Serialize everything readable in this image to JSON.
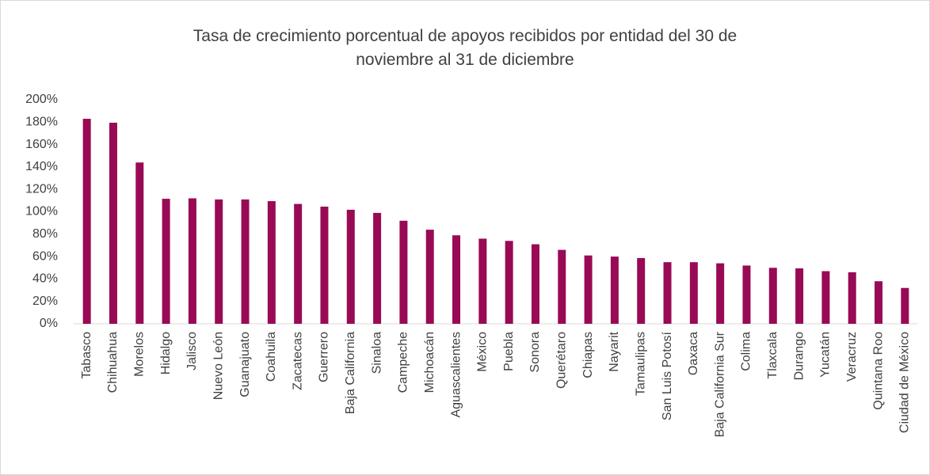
{
  "chart_data": {
    "type": "bar",
    "title": "Tasa de crecimiento porcentual de apoyos recibidos por entidad del 30 de noviembre al 31 de diciembre",
    "categories": [
      "Tabasco",
      "Chihuahua",
      "Morelos",
      "Hidalgo",
      "Jalisco",
      "Nuevo León",
      "Guanajuato",
      "Coahuila",
      "Zacatecas",
      "Guerrero",
      "Baja California",
      "Sinaloa",
      "Campeche",
      "Michoacán",
      "Aguascalientes",
      "México",
      "Puebla",
      "Sonora",
      "Querétaro",
      "Chiapas",
      "Nayarit",
      "Tamaulipas",
      "San Luis Potosí",
      "Oaxaca",
      "Baja California Sur",
      "Colima",
      "Tlaxcala",
      "Durango",
      "Yucatán",
      "Veracruz",
      "Quintana Roo",
      "Ciudad de México"
    ],
    "values": [
      183,
      179.5,
      144,
      111.6,
      112,
      111,
      111,
      109.5,
      107,
      104.6,
      101.8,
      99,
      92,
      84,
      79,
      76,
      74,
      71,
      66,
      61,
      60,
      58.7,
      55,
      55,
      54,
      52,
      50,
      49.5,
      47,
      46,
      38,
      32
    ],
    "color": "#990a55",
    "ylim": [
      0,
      200
    ],
    "yticks": [
      {
        "value": 0,
        "label": "0%"
      },
      {
        "value": 20,
        "label": "20%"
      },
      {
        "value": 40,
        "label": "40%"
      },
      {
        "value": 60,
        "label": "60%"
      },
      {
        "value": 80,
        "label": "80%"
      },
      {
        "value": 100,
        "label": "100%"
      },
      {
        "value": 120,
        "label": "120%"
      },
      {
        "value": 140,
        "label": "140%"
      },
      {
        "value": 160,
        "label": "160%"
      },
      {
        "value": 180,
        "label": "180%"
      },
      {
        "value": 200,
        "label": "200%"
      }
    ],
    "grid": false
  }
}
